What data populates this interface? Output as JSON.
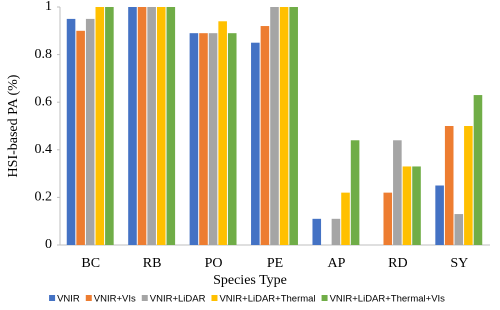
{
  "chart_data": {
    "type": "bar",
    "x_label": "Species Type",
    "y_label": "HSI-based PA (%)",
    "categories": [
      "BC",
      "RB",
      "PO",
      "PE",
      "AP",
      "RD",
      "SY"
    ],
    "series": [
      {
        "name": "VNIR",
        "color": "#4472c4",
        "values": [
          0.95,
          1,
          0.89,
          0.85,
          0.11,
          0,
          0.25
        ]
      },
      {
        "name": "VNIR+VIs",
        "color": "#ed7d31",
        "values": [
          0.9,
          1,
          0.89,
          0.92,
          0,
          0.22,
          0.5
        ]
      },
      {
        "name": "VNIR+LiDAR",
        "color": "#a5a5a5",
        "values": [
          0.95,
          1,
          0.89,
          1,
          0.11,
          0.44,
          0.13
        ]
      },
      {
        "name": "VNIR+LiDAR+Thermal",
        "color": "#ffc000",
        "values": [
          1,
          1,
          0.94,
          1,
          0.22,
          0.33,
          0.5
        ]
      },
      {
        "name": "VNIR+LiDAR+Thermal+VIs",
        "color": "#70ad47",
        "values": [
          1,
          1,
          0.89,
          1,
          0.44,
          0.33,
          0.63
        ]
      }
    ],
    "ylim": [
      0,
      1
    ],
    "yticks": [
      0,
      0.2,
      0.4,
      0.6,
      0.8,
      1
    ],
    "legend": "bottom"
  }
}
